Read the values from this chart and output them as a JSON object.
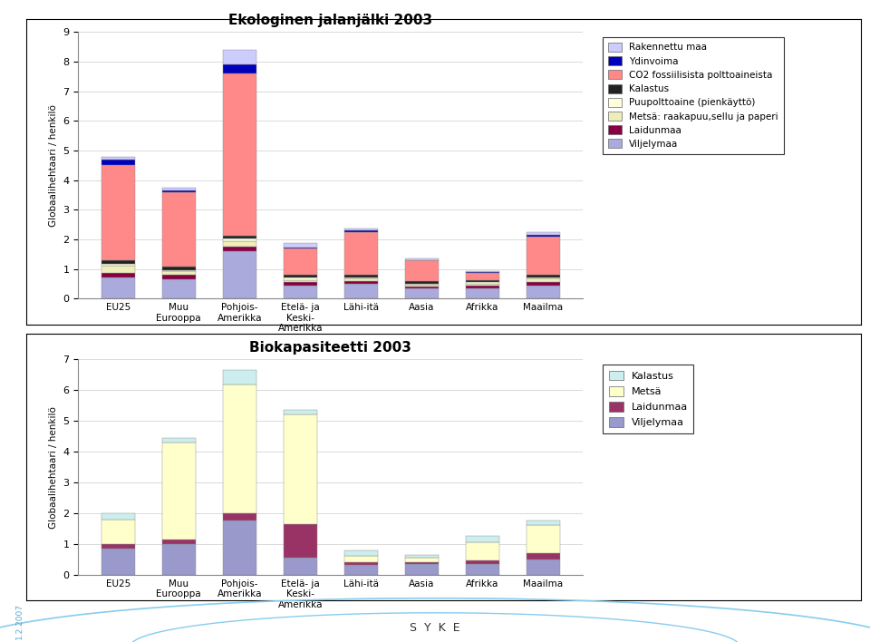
{
  "chart1": {
    "title": "Ekologinen jalanjälki 2003",
    "ylabel": "Globaalihehtaari / henkilö",
    "categories": [
      "EU25",
      "Muu\nEurooppa",
      "Pohjois-\nAmerikka",
      "Etelä- ja\nKeski-\nAmerikka",
      "Lähi-itä",
      "Aasia",
      "Afrikka",
      "Maailma"
    ],
    "ylim": [
      0,
      9
    ],
    "yticks": [
      0,
      1,
      2,
      3,
      4,
      5,
      6,
      7,
      8,
      9
    ],
    "layers": [
      {
        "label": "Viljelymaa",
        "color": "#aaaadd",
        "values": [
          0.7,
          0.65,
          1.6,
          0.45,
          0.5,
          0.35,
          0.35,
          0.45
        ]
      },
      {
        "label": "Laidunmaa",
        "color": "#880044",
        "values": [
          0.15,
          0.15,
          0.15,
          0.1,
          0.1,
          0.05,
          0.1,
          0.1
        ]
      },
      {
        "label": "Metsä: raakapuu,sellu ja paperi",
        "color": "#eeeebb",
        "values": [
          0.25,
          0.12,
          0.2,
          0.08,
          0.08,
          0.06,
          0.04,
          0.12
        ]
      },
      {
        "label": "Puupolttoaine (pienkäyttö)",
        "color": "#ffffdd",
        "values": [
          0.08,
          0.04,
          0.08,
          0.08,
          0.04,
          0.04,
          0.08,
          0.04
        ]
      },
      {
        "label": "Kalastus",
        "color": "#222222",
        "values": [
          0.12,
          0.12,
          0.08,
          0.08,
          0.08,
          0.08,
          0.04,
          0.08
        ]
      },
      {
        "label": "CO2 fossiilisista polttoaineista",
        "color": "#ff8888",
        "values": [
          3.2,
          2.5,
          5.5,
          0.9,
          1.45,
          0.7,
          0.25,
          1.3
        ]
      },
      {
        "label": "Ydinvoima",
        "color": "#0000bb",
        "values": [
          0.2,
          0.08,
          0.3,
          0.04,
          0.04,
          0.02,
          0.02,
          0.06
        ]
      },
      {
        "label": "Rakennettu maa",
        "color": "#ccccff",
        "values": [
          0.1,
          0.08,
          0.5,
          0.15,
          0.08,
          0.04,
          0.04,
          0.08
        ]
      }
    ]
  },
  "chart2": {
    "title": "Biokapasiteetti 2003",
    "ylabel": "Globaalihehtaari / henkilö",
    "categories": [
      "EU25",
      "Muu\nEurooppa",
      "Pohjois-\nAmerikka",
      "Etelä- ja\nKeski-\nAmerikka",
      "Lähi-itä",
      "Aasia",
      "Afrikka",
      "Maailma"
    ],
    "ylim": [
      0,
      7
    ],
    "yticks": [
      0,
      1,
      2,
      3,
      4,
      5,
      6,
      7
    ],
    "layers": [
      {
        "label": "Viljelymaa",
        "color": "#9999cc",
        "values": [
          0.85,
          1.0,
          1.75,
          0.55,
          0.3,
          0.35,
          0.35,
          0.5
        ]
      },
      {
        "label": "Laidunmaa",
        "color": "#993366",
        "values": [
          0.15,
          0.15,
          0.25,
          1.1,
          0.1,
          0.05,
          0.1,
          0.2
        ]
      },
      {
        "label": "Metsä",
        "color": "#ffffcc",
        "values": [
          0.8,
          3.15,
          4.2,
          3.55,
          0.2,
          0.15,
          0.6,
          0.9
        ]
      },
      {
        "label": "Kalastus",
        "color": "#cceeee",
        "values": [
          0.2,
          0.15,
          0.45,
          0.15,
          0.2,
          0.1,
          0.2,
          0.15
        ]
      }
    ]
  },
  "panel1_bg": "#ffffff",
  "panel2_bg": "#ffffff",
  "footer_bg": "#ddeeff",
  "outer_bg": "#ffffff",
  "date_text": "1.2.2007",
  "date_color": "#55aacc"
}
